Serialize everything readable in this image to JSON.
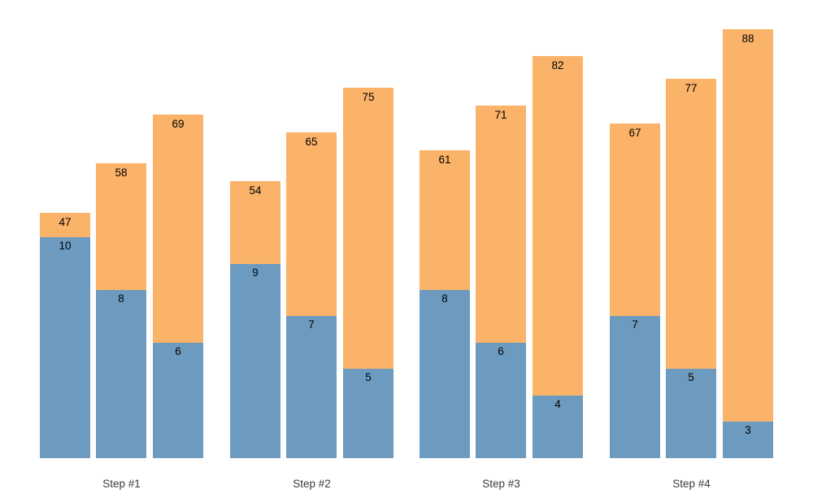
{
  "chart_data": {
    "type": "bar",
    "variant": "grouped-stacked",
    "title": "",
    "xlabel": "",
    "ylabel": "",
    "grid": false,
    "axes_visible": false,
    "legend": "none",
    "background": "#ffffff",
    "value_label_color": "#000000",
    "category_label_color": "#3a3a3a",
    "categories": [
      "Step #1",
      "Step #2",
      "Step #3",
      "Step #4"
    ],
    "series": [
      {
        "name": "bottom-blue-segment",
        "color": "#6D9BC0",
        "values": [
          [
            10,
            8,
            6
          ],
          [
            9,
            7,
            5
          ],
          [
            8,
            6,
            4
          ],
          [
            7,
            5,
            3
          ]
        ]
      },
      {
        "name": "top-orange-segment",
        "color": "#FAB369",
        "values": [
          [
            47,
            58,
            69
          ],
          [
            54,
            65,
            75
          ],
          [
            61,
            71,
            82
          ],
          [
            67,
            77,
            88
          ]
        ]
      }
    ],
    "labeling": "orange value printed just below each bar top; blue value printed just below the blue segment top; category label centered under each group"
  }
}
